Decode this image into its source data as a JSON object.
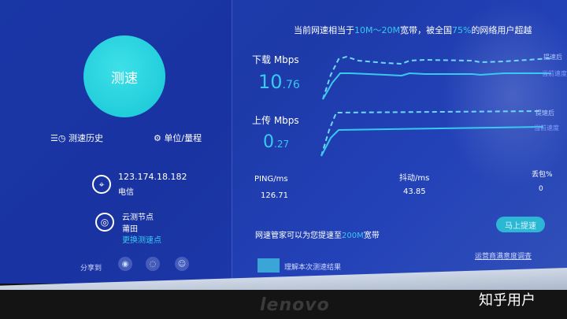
{
  "left": {
    "speed_button": "测速",
    "history": "测速历史",
    "units": "单位/量程",
    "ip": "123.174.18.182",
    "isp": "电信",
    "node_label": "云测节点",
    "node_city": "莆田",
    "change_node": "更换测速点",
    "share_label": "分享到",
    "share_icons": [
      "wechat-icon",
      "weibo-icon",
      "qq-icon"
    ]
  },
  "summary": {
    "prefix": "当前网速相当于",
    "range": "10M～20M",
    "mid": "宽带，被全国",
    "percent": "75%",
    "suffix": "的网络用户超越"
  },
  "download": {
    "label": "下载 Mbps",
    "int": "10",
    "dec": ".76",
    "legend_boost": "提速后",
    "legend_current": "当前速度"
  },
  "upload": {
    "label": "上传 Mbps",
    "int": "0",
    "dec": ".27",
    "legend_boost": "提速后",
    "legend_current": "当前速度"
  },
  "stats": {
    "ping_label": "PING/ms",
    "ping": "126.71",
    "jitter_label": "抖动/ms",
    "jitter": "43.85",
    "loss_label": "丢包%",
    "loss": "0"
  },
  "promo": {
    "text": "网速管家可以为您提速至",
    "speed": "200M",
    "suffix": "宽带",
    "button": "马上提速",
    "report": "理解本次测速结果",
    "operator": "运营商满意度调查"
  },
  "watermark": "知乎用户",
  "brand": "lenovo",
  "colors": {
    "accent": "#38c8f0",
    "button": "#2cb7d4",
    "background": "#1e3fb0"
  }
}
